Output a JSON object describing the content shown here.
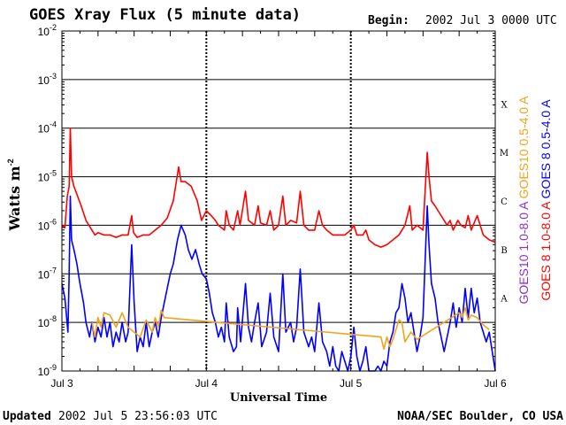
{
  "chart_data": {
    "type": "line",
    "title": "GOES Xray Flux (5 minute data)",
    "begin_label": "Begin:",
    "begin_value": "2002 Jul 3 0000 UTC",
    "xlabel": "Universal Time",
    "ylabel": "Watts m",
    "ylabel_sup": "-2",
    "y_scale": "log",
    "ylim": [
      1e-09,
      0.01
    ],
    "xlim": [
      0,
      72
    ],
    "x_unit": "hours since 2002 Jul 3 0000 UTC",
    "x_ticks": [
      {
        "label": "Jul 3",
        "x": 0
      },
      {
        "label": "Jul 4",
        "x": 24
      },
      {
        "label": "Jul 5",
        "x": 48
      },
      {
        "label": "Jul 6",
        "x": 72
      }
    ],
    "y_ticks": [
      {
        "base": "10",
        "exp": "-2",
        "value": -2
      },
      {
        "base": "10",
        "exp": "-3",
        "value": -3
      },
      {
        "base": "10",
        "exp": "-4",
        "value": -4
      },
      {
        "base": "10",
        "exp": "-5",
        "value": -5
      },
      {
        "base": "10",
        "exp": "-6",
        "value": -6
      },
      {
        "base": "10",
        "exp": "-7",
        "value": -7
      },
      {
        "base": "10",
        "exp": "-8",
        "value": -8
      },
      {
        "base": "10",
        "exp": "-9",
        "value": -9
      }
    ],
    "flare_classes": [
      {
        "label": "X",
        "log": -3.5
      },
      {
        "label": "M",
        "log": -4.5
      },
      {
        "label": "C",
        "log": -5.5
      },
      {
        "label": "B",
        "log": -6.5
      },
      {
        "label": "A",
        "log": -7.5
      }
    ],
    "series": [
      {
        "name": "GOES 8 1.0-8.0 A",
        "color": "#ff0000",
        "points": [
          [
            0,
            -6.0
          ],
          [
            0.5,
            -6.05
          ],
          [
            0.9,
            -5.4
          ],
          [
            1.2,
            -5.2
          ],
          [
            1.4,
            -4.0
          ],
          [
            1.6,
            -5.0
          ],
          [
            2,
            -5.2
          ],
          [
            2.6,
            -5.4
          ],
          [
            3.2,
            -5.6
          ],
          [
            4,
            -5.9
          ],
          [
            5,
            -6.1
          ],
          [
            5.5,
            -6.2
          ],
          [
            6,
            -6.15
          ],
          [
            7,
            -6.2
          ],
          [
            8,
            -6.2
          ],
          [
            9,
            -6.25
          ],
          [
            10,
            -6.2
          ],
          [
            11,
            -6.2
          ],
          [
            11.6,
            -5.8
          ],
          [
            11.9,
            -6.15
          ],
          [
            12.5,
            -6.25
          ],
          [
            13.5,
            -6.2
          ],
          [
            14.5,
            -6.2
          ],
          [
            15.5,
            -6.1
          ],
          [
            16.5,
            -6.0
          ],
          [
            17.5,
            -5.85
          ],
          [
            18.5,
            -5.5
          ],
          [
            19.4,
            -4.8
          ],
          [
            19.8,
            -5.1
          ],
          [
            20.5,
            -5.1
          ],
          [
            21.5,
            -5.2
          ],
          [
            22.5,
            -5.5
          ],
          [
            23.2,
            -5.9
          ],
          [
            24,
            -5.7
          ],
          [
            24.8,
            -5.8
          ],
          [
            25.5,
            -5.9
          ],
          [
            26,
            -6.0
          ],
          [
            27,
            -6.1
          ],
          [
            27.3,
            -5.7
          ],
          [
            27.8,
            -6.0
          ],
          [
            28.5,
            -6.1
          ],
          [
            29.2,
            -5.7
          ],
          [
            29.6,
            -6.0
          ],
          [
            30.5,
            -5.3
          ],
          [
            31,
            -5.9
          ],
          [
            32,
            -6.0
          ],
          [
            32.6,
            -5.6
          ],
          [
            33,
            -5.95
          ],
          [
            34,
            -6.0
          ],
          [
            34.6,
            -5.7
          ],
          [
            35.2,
            -6.1
          ],
          [
            36,
            -6.0
          ],
          [
            36.7,
            -5.4
          ],
          [
            37.2,
            -6.0
          ],
          [
            38,
            -5.9
          ],
          [
            39,
            -5.95
          ],
          [
            39.6,
            -5.3
          ],
          [
            40.2,
            -6.0
          ],
          [
            41,
            -6.1
          ],
          [
            42,
            -6.1
          ],
          [
            42.7,
            -5.7
          ],
          [
            43.3,
            -6.0
          ],
          [
            44,
            -6.1
          ],
          [
            45,
            -6.2
          ],
          [
            46,
            -6.2
          ],
          [
            47,
            -6.2
          ],
          [
            48,
            -6.1
          ],
          [
            48.5,
            -6.0
          ],
          [
            49,
            -6.2
          ],
          [
            50,
            -6.2
          ],
          [
            50.5,
            -6.1
          ],
          [
            51,
            -6.3
          ],
          [
            52,
            -6.4
          ],
          [
            53,
            -6.45
          ],
          [
            54,
            -6.4
          ],
          [
            55,
            -6.3
          ],
          [
            56,
            -6.2
          ],
          [
            57,
            -6.0
          ],
          [
            57.8,
            -5.6
          ],
          [
            58.2,
            -6.1
          ],
          [
            59,
            -6.0
          ],
          [
            60,
            -6.1
          ],
          [
            60.7,
            -4.5
          ],
          [
            61.0,
            -5.0
          ],
          [
            61.4,
            -5.5
          ],
          [
            62,
            -5.6
          ],
          [
            63,
            -5.8
          ],
          [
            64,
            -6.0
          ],
          [
            64.5,
            -5.9
          ],
          [
            65,
            -6.1
          ],
          [
            65.8,
            -5.9
          ],
          [
            66.3,
            -6.0
          ],
          [
            67,
            -6.05
          ],
          [
            67.5,
            -5.8
          ],
          [
            68,
            -6.1
          ],
          [
            69,
            -5.8
          ],
          [
            69.5,
            -6.0
          ],
          [
            70,
            -6.2
          ],
          [
            71,
            -6.3
          ],
          [
            72,
            -6.35
          ]
        ]
      },
      {
        "name": "GOES 8 0.5-4.0 A",
        "color": "#0000ff",
        "points": [
          [
            0,
            -7.2
          ],
          [
            0.5,
            -7.5
          ],
          [
            1.0,
            -8.2
          ],
          [
            1.2,
            -7.0
          ],
          [
            1.4,
            -5.4
          ],
          [
            1.6,
            -6.3
          ],
          [
            2,
            -6.5
          ],
          [
            2.5,
            -6.8
          ],
          [
            3,
            -7.2
          ],
          [
            3.6,
            -7.6
          ],
          [
            4,
            -8.0
          ],
          [
            4.6,
            -8.3
          ],
          [
            5,
            -8.0
          ],
          [
            5.5,
            -8.4
          ],
          [
            6,
            -8.1
          ],
          [
            6.5,
            -8.3
          ],
          [
            7,
            -7.9
          ],
          [
            7.5,
            -8.3
          ],
          [
            8,
            -8.0
          ],
          [
            8.5,
            -8.5
          ],
          [
            9,
            -8.2
          ],
          [
            9.5,
            -8.4
          ],
          [
            10,
            -8.0
          ],
          [
            10.6,
            -8.4
          ],
          [
            11,
            -8.2
          ],
          [
            11.6,
            -6.4
          ],
          [
            12,
            -7.6
          ],
          [
            12.5,
            -8.6
          ],
          [
            13,
            -8.3
          ],
          [
            13.5,
            -8.5
          ],
          [
            14,
            -8.0
          ],
          [
            14.5,
            -8.5
          ],
          [
            15,
            -8.2
          ],
          [
            15.5,
            -8.0
          ],
          [
            16,
            -8.3
          ],
          [
            16.5,
            -7.9
          ],
          [
            17,
            -7.6
          ],
          [
            17.5,
            -7.3
          ],
          [
            18,
            -7.0
          ],
          [
            18.5,
            -6.8
          ],
          [
            19.2,
            -6.3
          ],
          [
            19.8,
            -6.0
          ],
          [
            20.5,
            -6.2
          ],
          [
            21,
            -6.5
          ],
          [
            21.6,
            -6.7
          ],
          [
            22.2,
            -6.5
          ],
          [
            22.8,
            -6.8
          ],
          [
            23.3,
            -7.0
          ],
          [
            24,
            -7.1
          ],
          [
            24.5,
            -7.4
          ],
          [
            25,
            -7.8
          ],
          [
            25.5,
            -8.0
          ],
          [
            26,
            -8.3
          ],
          [
            26.5,
            -8.1
          ],
          [
            27,
            -8.4
          ],
          [
            27.3,
            -7.6
          ],
          [
            27.8,
            -8.3
          ],
          [
            28.5,
            -8.6
          ],
          [
            29,
            -8.5
          ],
          [
            29.2,
            -7.7
          ],
          [
            29.7,
            -8.4
          ],
          [
            30.5,
            -7.2
          ],
          [
            31,
            -8.1
          ],
          [
            31.5,
            -8.4
          ],
          [
            32,
            -8.0
          ],
          [
            32.6,
            -7.6
          ],
          [
            33.2,
            -8.5
          ],
          [
            34,
            -8.2
          ],
          [
            34.6,
            -7.4
          ],
          [
            35.2,
            -8.3
          ],
          [
            36,
            -8.6
          ],
          [
            36.7,
            -7.0
          ],
          [
            37.2,
            -8.2
          ],
          [
            38,
            -8.0
          ],
          [
            38.5,
            -8.4
          ],
          [
            39,
            -8.1
          ],
          [
            39.6,
            -6.9
          ],
          [
            40.2,
            -8.2
          ],
          [
            41,
            -8.5
          ],
          [
            41.5,
            -8.3
          ],
          [
            42,
            -8.6
          ],
          [
            42.7,
            -7.6
          ],
          [
            43.3,
            -8.4
          ],
          [
            44,
            -8.6
          ],
          [
            44.5,
            -8.9
          ],
          [
            45,
            -8.5
          ],
          [
            45.5,
            -8.9
          ],
          [
            46,
            -9.0
          ],
          [
            46.5,
            -8.6
          ],
          [
            47,
            -8.8
          ],
          [
            47.5,
            -9.0
          ],
          [
            48,
            -8.7
          ],
          [
            48.5,
            -8.1
          ],
          [
            49,
            -8.7
          ],
          [
            49.5,
            -9.0
          ],
          [
            50,
            -8.8
          ],
          [
            50.5,
            -8.5
          ],
          [
            51,
            -9.0
          ],
          [
            51.5,
            -9.0
          ],
          [
            52,
            -9.0
          ],
          [
            52.5,
            -8.9
          ],
          [
            53,
            -9.0
          ],
          [
            53.5,
            -8.8
          ],
          [
            54,
            -8.9
          ],
          [
            54.5,
            -8.4
          ],
          [
            55,
            -8.2
          ],
          [
            55.5,
            -7.8
          ],
          [
            56,
            -7.7
          ],
          [
            56.5,
            -7.2
          ],
          [
            57,
            -7.5
          ],
          [
            57.5,
            -8.0
          ],
          [
            58,
            -7.8
          ],
          [
            58.5,
            -8.2
          ],
          [
            59,
            -8.6
          ],
          [
            59.5,
            -8.3
          ],
          [
            60,
            -7.9
          ],
          [
            60.7,
            -5.6
          ],
          [
            61,
            -6.4
          ],
          [
            61.4,
            -7.2
          ],
          [
            62,
            -7.5
          ],
          [
            62.5,
            -8.0
          ],
          [
            63,
            -8.3
          ],
          [
            63.5,
            -8.6
          ],
          [
            64,
            -8.3
          ],
          [
            64.5,
            -8.0
          ],
          [
            65,
            -7.6
          ],
          [
            65.5,
            -8.1
          ],
          [
            66,
            -7.7
          ],
          [
            66.5,
            -8.0
          ],
          [
            67,
            -7.3
          ],
          [
            67.5,
            -7.9
          ],
          [
            68,
            -7.3
          ],
          [
            68.5,
            -7.8
          ],
          [
            69,
            -7.5
          ],
          [
            69.5,
            -8.0
          ],
          [
            70,
            -8.2
          ],
          [
            70.5,
            -8.4
          ],
          [
            71,
            -8.2
          ],
          [
            71.5,
            -8.6
          ],
          [
            72,
            -9.0
          ]
        ]
      },
      {
        "name": "GOES10 1.0-8.0 A",
        "color": "#8f2fd0",
        "points": []
      },
      {
        "name": "GOES10 0.5-4.0 A",
        "color": "#f2a31b",
        "points": [
          [
            5,
            -8.0
          ],
          [
            5.5,
            -8.3
          ],
          [
            6,
            -7.9
          ],
          [
            6.5,
            -8.1
          ],
          [
            7,
            -7.8
          ],
          [
            8,
            -7.85
          ],
          [
            9,
            -8.1
          ],
          [
            10,
            -7.8
          ],
          [
            11,
            -8.1
          ],
          [
            13,
            -8.3
          ],
          [
            14,
            -7.95
          ],
          [
            15,
            -8.2
          ],
          [
            15.5,
            -7.9
          ],
          [
            16,
            -8.1
          ],
          [
            16.5,
            -7.75
          ],
          [
            17,
            -7.9
          ],
          [
            53,
            -8.3
          ],
          [
            53.5,
            -8.55
          ],
          [
            54,
            -8.3
          ],
          [
            54.5,
            -8.5
          ],
          [
            55,
            -8.35
          ],
          [
            56,
            -7.95
          ],
          [
            56.5,
            -8.0
          ],
          [
            57,
            -8.4
          ],
          [
            58,
            -8.2
          ],
          [
            59,
            -8.35
          ],
          [
            66,
            -7.8
          ],
          [
            66.5,
            -7.9
          ],
          [
            67,
            -7.7
          ],
          [
            67.5,
            -7.95
          ],
          [
            68,
            -7.85
          ],
          [
            69,
            -7.9
          ],
          [
            70,
            -8.05
          ],
          [
            71,
            -8.15
          ]
        ]
      }
    ],
    "legend_left": [
      {
        "label": "GOES10 1.0-8.0 A",
        "color": "#8f2fd0"
      },
      {
        "label": "GOES10 0.5-4.0 A",
        "color": "#f2a31b"
      }
    ],
    "legend_right": [
      {
        "label": "GOES 8 1.0-8.0 A",
        "color": "#ff0000"
      },
      {
        "label": "GOES 8 0.5-4.0 A",
        "color": "#0000ff"
      }
    ]
  },
  "footer": {
    "updated_label": "Updated",
    "updated_value": "2002 Jul  5 23:56:03 UTC",
    "source": "NOAA/SEC Boulder, CO USA"
  }
}
